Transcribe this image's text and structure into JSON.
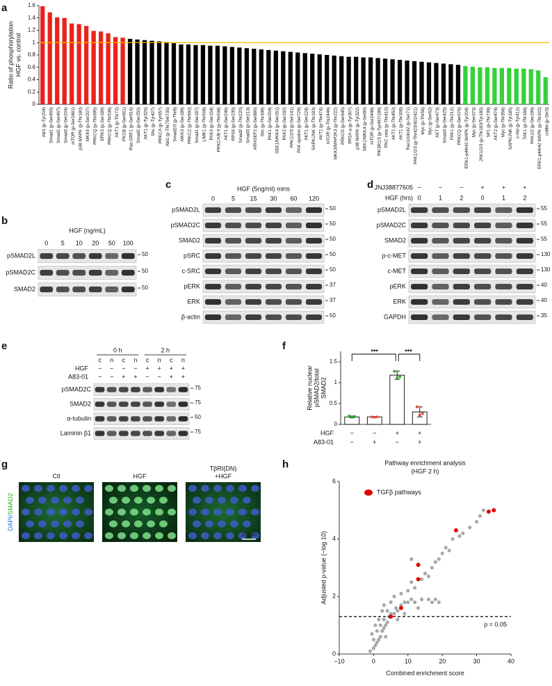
{
  "panel_labels": [
    "a",
    "b",
    "c",
    "d",
    "e",
    "f",
    "g",
    "h"
  ],
  "chart_data": [
    {
      "type": "bar",
      "ylabel": [
        "Ratio of phosphorylation",
        "HGF vs. control"
      ],
      "categories": [
        "Abl1 (p-Tyr204)",
        "Smad1 (p-Ser465)",
        "Smad2 (p-Ser467)",
        "Smad3 (p-Ser204)",
        "mTOR (p-Ser2481)",
        "p38 MAPK (p-Thr180)",
        "MKK6 (p-Ser207)",
        "PRKCQ (p-Thr695)",
        "ERK3 (p-Ser189)",
        "PRKCQ (p-Thr538)",
        "AKT1 (p-Thr72)",
        "PKCB (p-Ser661)",
        "Ras-GRF1 (p-Ser916)",
        "Smad2 (p-Ser250)",
        "AKT1 (p-Tyr326)",
        "Shc (p-Tyr427)",
        "PRKCA (p-Tyr657)",
        "Abl1 (p-Thr754/735)",
        "Smad2/3 (p-Thr8)",
        "MKK3 (p-Ser189)",
        "PRKCZ (p-Thr560)",
        "Smad1 (p-Ser187)",
        "LIMK1 (p-Thr508)",
        "PAK3 (p-Ser154)",
        "PRKCA/B II (p-Thr638)",
        "AKT1 (p-Ser246)",
        "RPS6 (p-Ser235)",
        "Smad2 (p-Thr220)",
        "Smad3 (p-Ser213)",
        "ARHGEF2 (p-Ser886)",
        "Shc (p-Thr349)",
        "PAK1 (p-Ser204)",
        "SEK1/MKK4 (p-Ser261)",
        "PAK2 (p-Ser192)",
        "PAK1/2/3 (p-Ser141)",
        "PAK epsilon (p-Ser729)",
        "AKT1 (p-Ser124)",
        "SAPK/JNK (p-Thr183)",
        "AKT1 (p-Thr474)",
        "mTOR (p-Thr2446)",
        "MKK3/MAP2K3 (p-Thr222)",
        "PRKCD (p-Ser645)",
        "PP2A-a (p-Tyr307)",
        "p38 MAPK (p-Tyr322)",
        "SEK1/MKK4 (p-Ser80)",
        "mTOR (p-Ser2448)",
        "PIK3R1/3 (p-Tyr467/199)",
        "PKC zeta (p-Thr410)",
        "AKT1 (p-Thr450)",
        "AKT1 (p-Thr308)",
        "Rac1/cdc42 (p-Ser71)",
        "PAK1/2/3 (p-Thr423/402/421)",
        "Myc (p-Thr58)",
        "Myc (p-Ser62)",
        "AKT (p-Ser473)",
        "Smad3 (p-Ser425)",
        "PAK1 (p-Thr212)",
        "PRKCQ (p-Ser676)",
        "ERK1-p44/42 MAPK (p-Tyr204)",
        "Myc (p-Ser373)",
        "JNK1/2/3 (p-Thr183/Tyr185)",
        "SP1 (p-Thr739)",
        "AKT2 (p-Ser474)",
        "Myc (p-Thr358)",
        "SAPK/JNK (p-Tyr185)",
        "c-Abl (p-Tyr412)",
        "TAK1 (p-Thr184)",
        "PAK1/2 (p-Ser199)",
        "ERK1-p44/42 MAPK (p-Thr202)",
        "cofilin (p-Ser3)"
      ],
      "values": [
        1.59,
        1.49,
        1.41,
        1.4,
        1.31,
        1.3,
        1.27,
        1.19,
        1.18,
        1.15,
        1.09,
        1.08,
        1.06,
        1.05,
        1.04,
        1.03,
        1.02,
        1.01,
        0.99,
        0.97,
        0.97,
        0.96,
        0.96,
        0.95,
        0.95,
        0.94,
        0.93,
        0.92,
        0.91,
        0.9,
        0.89,
        0.88,
        0.87,
        0.86,
        0.85,
        0.84,
        0.83,
        0.82,
        0.81,
        0.8,
        0.79,
        0.78,
        0.77,
        0.77,
        0.76,
        0.76,
        0.75,
        0.74,
        0.73,
        0.72,
        0.71,
        0.7,
        0.69,
        0.68,
        0.67,
        0.66,
        0.65,
        0.64,
        0.62,
        0.61,
        0.6,
        0.6,
        0.59,
        0.59,
        0.59,
        0.58,
        0.58,
        0.57,
        0.55,
        0.44
      ],
      "colors": [
        "#e8231c",
        "#e8231c",
        "#e8231c",
        "#e8231c",
        "#e8231c",
        "#e8231c",
        "#e8231c",
        "#e8231c",
        "#e8231c",
        "#e8231c",
        "#e8231c",
        "#e8231c",
        "#000",
        "#000",
        "#000",
        "#000",
        "#000",
        "#000",
        "#000",
        "#000",
        "#000",
        "#000",
        "#000",
        "#000",
        "#000",
        "#000",
        "#000",
        "#000",
        "#000",
        "#000",
        "#000",
        "#000",
        "#000",
        "#000",
        "#000",
        "#000",
        "#000",
        "#000",
        "#000",
        "#000",
        "#000",
        "#000",
        "#000",
        "#000",
        "#000",
        "#000",
        "#000",
        "#000",
        "#000",
        "#000",
        "#000",
        "#000",
        "#000",
        "#000",
        "#000",
        "#000",
        "#000",
        "#000",
        "#34d23a",
        "#34d23a",
        "#34d23a",
        "#34d23a",
        "#34d23a",
        "#34d23a",
        "#34d23a",
        "#34d23a",
        "#34d23a",
        "#34d23a",
        "#34d23a",
        "#34d23a"
      ],
      "reference_line": {
        "value": 1,
        "color": "#f5b800"
      },
      "ylim": [
        0,
        1.6
      ],
      "yticks": [
        0,
        0.2,
        0.4,
        0.6,
        0.8,
        1,
        1.2,
        1.4,
        1.6
      ]
    },
    {
      "type": "bar",
      "ylabel": [
        "Relative nuclear",
        "pSMAD2/total",
        "SMAD2"
      ],
      "values": [
        0.18,
        0.18,
        1.18,
        0.3
      ],
      "errors": [
        0.02,
        0.01,
        0.1,
        0.12
      ],
      "points": [
        [
          0.2,
          0.17,
          0.19
        ],
        [
          0.18,
          0.17,
          0.18
        ],
        [
          1.27,
          1.12,
          1.14
        ],
        [
          0.42,
          0.22,
          0.26
        ]
      ],
      "point_colors": [
        "#3aaa35",
        "#e74c3c",
        "#3aaa35",
        "#e74c3c"
      ],
      "conditions": [
        {
          "name": "HGF",
          "values": [
            "−",
            "−",
            "+",
            "+"
          ]
        },
        {
          "name": "A83-01",
          "values": [
            "−",
            "+",
            "−",
            "+"
          ]
        }
      ],
      "significance": [
        "***",
        "***"
      ],
      "ylim": [
        0,
        1.75
      ],
      "yticks": [
        0,
        0.5,
        1,
        1.5
      ]
    },
    {
      "type": "scatter",
      "title": [
        "Pathway enrichment analysis",
        "(HGF 2 h)"
      ],
      "xlabel": "Combined enrichment score",
      "ylabel": "Adjusted p-value (−log 10)",
      "points": {
        "color": "#a9a9a9",
        "x": [
          -1,
          0,
          0.5,
          1,
          0,
          1.5,
          2,
          -0.5,
          1,
          2.5,
          3,
          0.5,
          2,
          3.5,
          4,
          1.5,
          3,
          4.5,
          5,
          6,
          2.5,
          4,
          6.5,
          7,
          8,
          3,
          5,
          9,
          10,
          11,
          12,
          14,
          16,
          17,
          18,
          19,
          6,
          8,
          10,
          12,
          11,
          14,
          15,
          16,
          17,
          18,
          19,
          20,
          21,
          22,
          23,
          25,
          26,
          28,
          30,
          31,
          32,
          11,
          3.5,
          7,
          9,
          13
        ],
        "y": [
          0.1,
          0.2,
          0.3,
          0.4,
          0.5,
          0.5,
          0.6,
          0.7,
          0.8,
          0.8,
          0.9,
          1.0,
          1.0,
          1.0,
          1.1,
          1.2,
          1.2,
          1.3,
          1.4,
          1.4,
          1.5,
          1.5,
          1.6,
          1.5,
          1.7,
          1.7,
          1.8,
          1.8,
          1.8,
          1.9,
          1.8,
          1.9,
          1.9,
          1.8,
          1.9,
          1.8,
          2.0,
          2.1,
          2.2,
          2.3,
          2.5,
          2.6,
          2.8,
          2.7,
          3.0,
          3.2,
          3.3,
          3.5,
          3.7,
          3.6,
          4.0,
          4.1,
          4.2,
          4.4,
          4.6,
          4.8,
          5.0,
          3.3,
          0.6,
          1.2,
          1.4,
          1.6
        ]
      },
      "series": [
        {
          "name": "TGFβ pathways",
          "color": "#e00000",
          "x": [
            5,
            8,
            13,
            13,
            24,
            33.5,
            35
          ],
          "y": [
            1.3,
            1.6,
            2.6,
            3.1,
            4.3,
            4.95,
            5.0
          ]
        }
      ],
      "threshold": {
        "value": 1.3,
        "label": "p = 0.05"
      },
      "xlim": [
        -10,
        40
      ],
      "xticks": [
        {
          "value": -10,
          "label": "−10"
        },
        0,
        10,
        20,
        30,
        40
      ],
      "ylim": [
        0,
        6
      ],
      "yticks": [
        0,
        2,
        4,
        6
      ]
    }
  ],
  "blots": {
    "b": {
      "header": "HGF (ng/mL)",
      "lanes": [
        "0",
        "5",
        "10",
        "20",
        "50",
        "100"
      ],
      "rows": [
        {
          "label": "pSMAD2L",
          "marker": "50"
        },
        {
          "label": "pSMAD2C",
          "marker": "50"
        },
        {
          "label": "SMAD2",
          "marker": "50"
        }
      ]
    },
    "c": {
      "header": "HGF (5ng/ml) mins",
      "lanes": [
        "0",
        "5",
        "15",
        "30",
        "60",
        "120"
      ],
      "rows": [
        {
          "label": "pSMAD2L",
          "marker": "50"
        },
        {
          "label": "pSMAD2C",
          "marker": "50"
        },
        {
          "label": "SMAD2",
          "marker": "50"
        },
        {
          "label": "pSRC",
          "marker": "50"
        },
        {
          "label": "c-SRC",
          "marker": "50"
        },
        {
          "label": "pERK",
          "marker": "37"
        },
        {
          "label": "ERK",
          "marker": "37"
        },
        {
          "label": "β-actin",
          "marker": "50"
        }
      ]
    },
    "d": {
      "conditions": [
        {
          "name": "JNJ38877605",
          "values": [
            "−",
            "−",
            "−",
            "+",
            "+",
            "+"
          ]
        },
        {
          "name": "HGF (hrs)",
          "values": [
            "0",
            "1",
            "2",
            "0",
            "1",
            "2"
          ]
        }
      ],
      "rows": [
        {
          "label": "pSMAD2L",
          "marker": "55"
        },
        {
          "label": "pSMAD2C",
          "marker": "55"
        },
        {
          "label": "SMAD2",
          "marker": "55"
        },
        {
          "label": "p-c-MET",
          "marker": "130"
        },
        {
          "label": "c-MET",
          "marker": "130"
        },
        {
          "label": "pERK",
          "marker": "40"
        },
        {
          "label": "ERK",
          "marker": "40"
        },
        {
          "label": "GAPDH",
          "marker": "35"
        }
      ]
    },
    "e": {
      "groups": [
        "0 h",
        "2 h"
      ],
      "lanes": [
        "c",
        "n",
        "c",
        "n",
        "c",
        "n",
        "c",
        "n"
      ],
      "conditions": [
        {
          "name": "HGF",
          "values": [
            "−",
            "−",
            "−",
            "−",
            "+",
            "+",
            "+",
            "+"
          ]
        },
        {
          "name": "A83-01",
          "values": [
            "−",
            "−",
            "+",
            "+",
            "−",
            "−",
            "+",
            "+"
          ]
        }
      ],
      "rows": [
        {
          "label": "pSMAD2C",
          "marker": "75"
        },
        {
          "label": "SMAD2",
          "marker": "75"
        },
        {
          "label": "α-tubulin",
          "marker": "50"
        },
        {
          "label": "Laminin β1",
          "marker": "75"
        }
      ]
    }
  },
  "micrographs": {
    "channel_label": [
      "DAPI/",
      "SMAD2"
    ],
    "panels": [
      [
        "Ctl"
      ],
      [
        "HGF"
      ],
      [
        "TβRI(DN)",
        "+HGF"
      ]
    ],
    "scale_bar": "10 μm"
  }
}
